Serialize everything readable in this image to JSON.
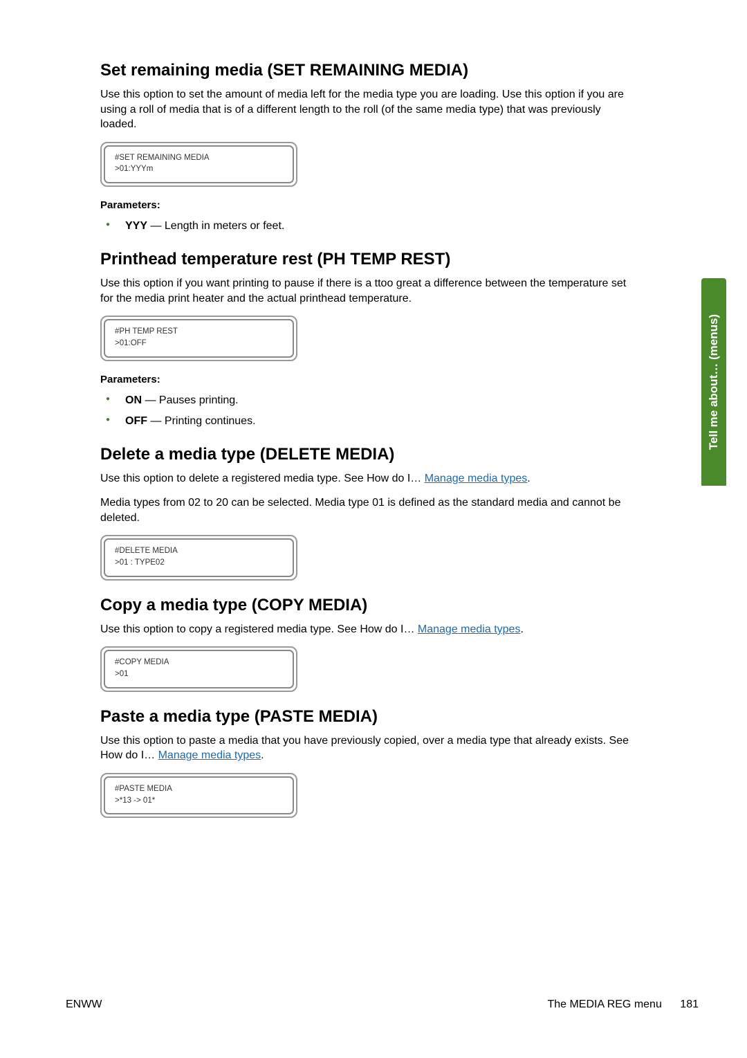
{
  "side_tab": {
    "label": "Tell me about… (menus)",
    "bg": "#4a8a2a",
    "color": "#ffffff"
  },
  "footer": {
    "left": "ENWW",
    "right_text": "The MEDIA REG menu",
    "page_num": "181"
  },
  "link_color": "#1a6bb0",
  "bullet_color": "#4a7a3a",
  "sections": {
    "set_remaining": {
      "heading": "Set remaining media (SET REMAINING MEDIA)",
      "body": "Use this option to set the amount of media left for the media type you are loading. Use this option if you are using a roll of media that is of a different length to the roll (of the same media type) that was previously loaded.",
      "lcd": {
        "line1": "#SET REMAINING MEDIA",
        "line2": ">01:YYYm"
      },
      "params_label": "Parameters:",
      "params": [
        {
          "name": "YYY",
          "desc": " — Length in meters or feet."
        }
      ]
    },
    "ph_temp": {
      "heading": "Printhead temperature rest (PH TEMP REST)",
      "body": "Use this option if you want printing to pause if there is a ttoo great a difference between the temperature set for the media print heater and the actual printhead temperature.",
      "lcd": {
        "line1": "#PH TEMP REST",
        "line2": ">01:OFF"
      },
      "params_label": "Parameters:",
      "params": [
        {
          "name": "ON",
          "desc": " — Pauses printing."
        },
        {
          "name": "OFF",
          "desc": " — Printing continues."
        }
      ]
    },
    "delete_media": {
      "heading": "Delete a media type (DELETE MEDIA)",
      "body_pre": "Use this option to delete a registered media type. See How do I… ",
      "link": "Manage media types",
      "body_post": ".",
      "body2": "Media types from 02 to 20 can be selected. Media type 01 is defined as the standard media and cannot be deleted.",
      "lcd": {
        "line1": "#DELETE MEDIA",
        "line2": ">01 : TYPE02"
      }
    },
    "copy_media": {
      "heading": "Copy a media type (COPY MEDIA)",
      "body_pre": "Use this option to copy a registered media type. See How do I… ",
      "link": "Manage media types",
      "body_post": ".",
      "lcd": {
        "line1": "#COPY MEDIA",
        "line2": ">01"
      }
    },
    "paste_media": {
      "heading": "Paste a media type (PASTE MEDIA)",
      "body_pre": "Use this option to paste a media that you have previously copied, over a media type that already exists. See How do I… ",
      "link": "Manage media types",
      "body_post": ".",
      "lcd": {
        "line1": "#PASTE MEDIA",
        "line2": ">*13 -> 01*"
      }
    }
  }
}
